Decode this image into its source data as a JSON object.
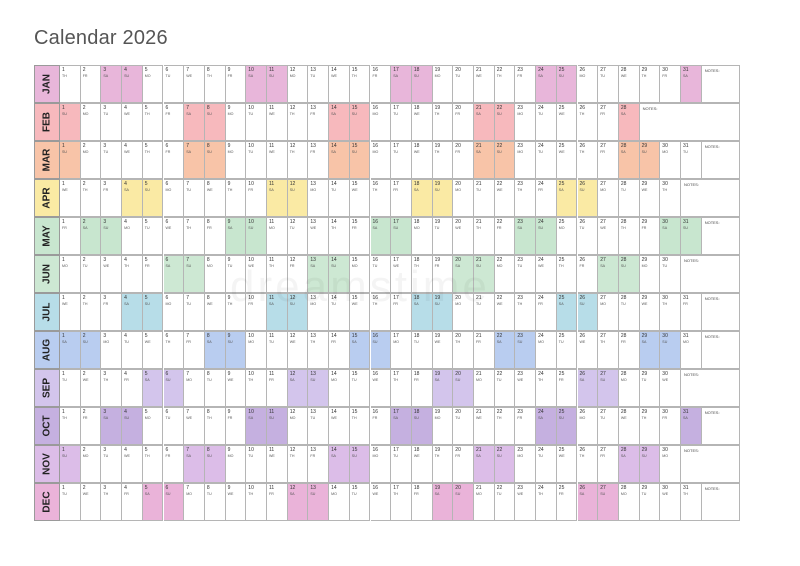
{
  "title": "Calendar 2026",
  "notes_label": "NOTES:",
  "weekday_abbr": [
    "MO",
    "TU",
    "WE",
    "TH",
    "FR",
    "SA",
    "SU"
  ],
  "months": [
    {
      "label": "JAN",
      "days": 31,
      "first_weekday": 3,
      "color": "#e8b6da"
    },
    {
      "label": "FEB",
      "days": 28,
      "first_weekday": 6,
      "color": "#f7b9bd"
    },
    {
      "label": "MAR",
      "days": 31,
      "first_weekday": 6,
      "color": "#f8c4a8"
    },
    {
      "label": "APR",
      "days": 30,
      "first_weekday": 2,
      "color": "#faeaa4"
    },
    {
      "label": "MAY",
      "days": 31,
      "first_weekday": 4,
      "color": "#c8e6cf"
    },
    {
      "label": "JUN",
      "days": 30,
      "first_weekday": 0,
      "color": "#cde8d3"
    },
    {
      "label": "JUL",
      "days": 31,
      "first_weekday": 2,
      "color": "#b7dde8"
    },
    {
      "label": "AUG",
      "days": 31,
      "first_weekday": 5,
      "color": "#b9cdf0"
    },
    {
      "label": "SEP",
      "days": 30,
      "first_weekday": 1,
      "color": "#d3c5ec"
    },
    {
      "label": "OCT",
      "days": 31,
      "first_weekday": 3,
      "color": "#c5b0e0"
    },
    {
      "label": "NOV",
      "days": 30,
      "first_weekday": 6,
      "color": "#dcbde8"
    },
    {
      "label": "DEC",
      "days": 31,
      "first_weekday": 1,
      "color": "#eab3d9"
    }
  ]
}
